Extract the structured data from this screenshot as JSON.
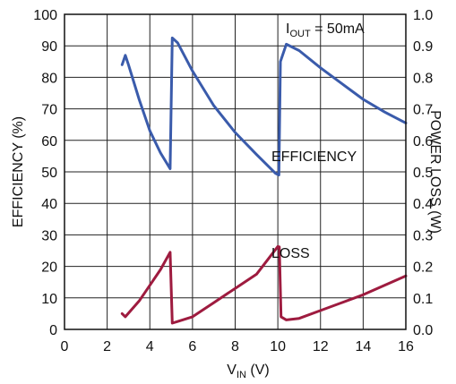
{
  "chart_data": {
    "type": "line",
    "x_axis": {
      "label_main": "V",
      "label_sub": "IN",
      "label_unit": " (V)",
      "range": [
        0,
        16
      ],
      "ticks": [
        "0",
        "2",
        "4",
        "6",
        "8",
        "10",
        "12",
        "14",
        "16"
      ]
    },
    "y_left": {
      "label": "EFFICIENCY (%)",
      "range": [
        0,
        100
      ],
      "ticks": [
        "0",
        "10",
        "20",
        "30",
        "40",
        "50",
        "60",
        "70",
        "80",
        "90",
        "100"
      ]
    },
    "y_right": {
      "label": "POWER LOSS (W)",
      "range": [
        0,
        1.0
      ],
      "ticks": [
        "0.0",
        "0.1",
        "0.2",
        "0.3",
        "0.4",
        "0.5",
        "0.6",
        "0.7",
        "0.8",
        "0.9",
        "1.0"
      ]
    },
    "grid": true,
    "condition": {
      "main": "I",
      "sub": "OUT",
      "rest": " = 50mA"
    },
    "series": [
      {
        "name": "EFFICIENCY",
        "axis": "left",
        "color": "#3a5bab",
        "points": [
          [
            2.7,
            84
          ],
          [
            2.85,
            87
          ],
          [
            3.0,
            84
          ],
          [
            3.5,
            73
          ],
          [
            4.0,
            63
          ],
          [
            4.5,
            56
          ],
          [
            4.95,
            51
          ],
          [
            5.05,
            92.5
          ],
          [
            5.3,
            91
          ],
          [
            6.0,
            82
          ],
          [
            7.0,
            71
          ],
          [
            8.0,
            62.5
          ],
          [
            9.0,
            55.5
          ],
          [
            9.9,
            49.5
          ],
          [
            10.05,
            49
          ],
          [
            10.12,
            85
          ],
          [
            10.4,
            90.5
          ],
          [
            11.0,
            88.5
          ],
          [
            12.0,
            83
          ],
          [
            13.0,
            78
          ],
          [
            14.0,
            73
          ],
          [
            15.0,
            69
          ],
          [
            16.0,
            65.5
          ]
        ]
      },
      {
        "name": "LOSS",
        "axis": "right",
        "color": "#9e1b3f",
        "points": [
          [
            2.7,
            0.05
          ],
          [
            2.85,
            0.04
          ],
          [
            3.5,
            0.09
          ],
          [
            4.0,
            0.14
          ],
          [
            4.5,
            0.19
          ],
          [
            4.95,
            0.245
          ],
          [
            5.05,
            0.02
          ],
          [
            5.3,
            0.025
          ],
          [
            6.0,
            0.04
          ],
          [
            7.0,
            0.085
          ],
          [
            8.0,
            0.13
          ],
          [
            9.0,
            0.175
          ],
          [
            10.0,
            0.263
          ],
          [
            10.07,
            0.262
          ],
          [
            10.15,
            0.04
          ],
          [
            10.4,
            0.03
          ],
          [
            11.0,
            0.035
          ],
          [
            12.0,
            0.06
          ],
          [
            13.0,
            0.085
          ],
          [
            14.0,
            0.11
          ],
          [
            15.0,
            0.14
          ],
          [
            16.0,
            0.17
          ]
        ]
      }
    ]
  }
}
